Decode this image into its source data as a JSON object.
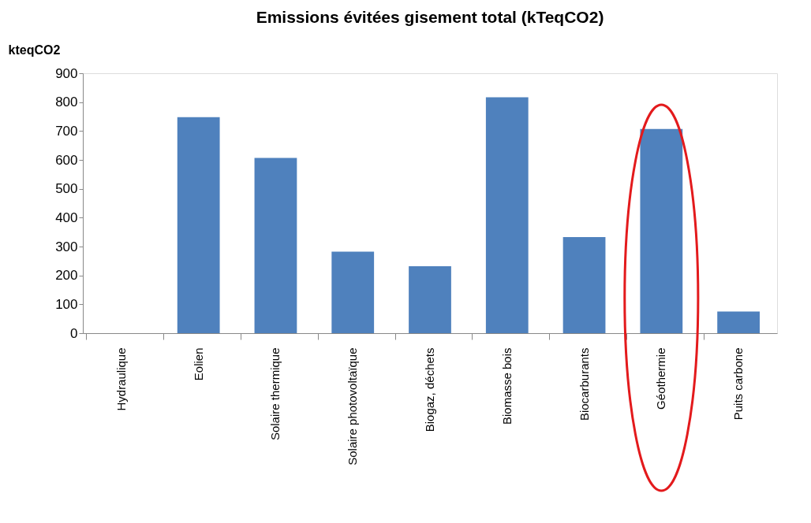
{
  "chart_data": {
    "type": "bar",
    "title": "Emissions évitées gisement total (kTeqCO2)",
    "ylabel": "kteqCO2",
    "categories": [
      "Hydraulique",
      "Eolien",
      "Solaire thermique",
      "Solaire photovoltaïque",
      "Biogaz, déchets",
      "Biomasse bois",
      "Biocarburants",
      "Géothermie",
      "Puits carbone"
    ],
    "values": [
      0,
      748,
      607,
      282,
      232,
      817,
      333,
      707,
      75
    ],
    "color": "#4f81bd",
    "ylim": [
      0,
      900
    ],
    "yticks": [
      0,
      100,
      200,
      300,
      400,
      500,
      600,
      700,
      800,
      900
    ],
    "grid": false
  }
}
